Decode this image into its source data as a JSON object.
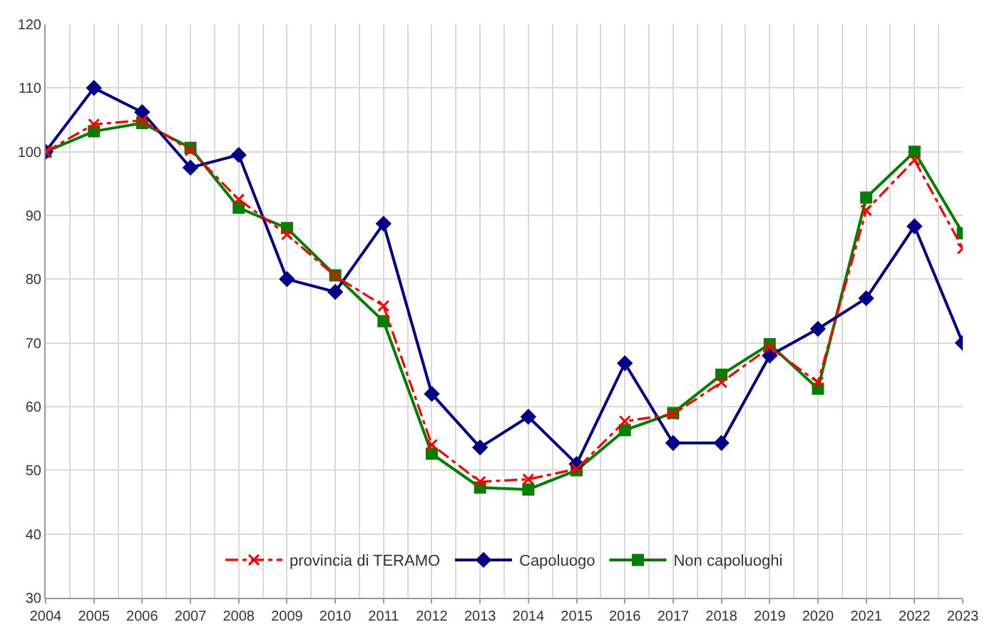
{
  "chart_data": {
    "type": "line",
    "x": [
      2004,
      2005,
      2006,
      2007,
      2008,
      2009,
      2010,
      2011,
      2012,
      2013,
      2014,
      2015,
      2016,
      2017,
      2018,
      2019,
      2020,
      2021,
      2022,
      2023
    ],
    "xlim": [
      2004,
      2023
    ],
    "xticks": [
      2004,
      2005,
      2006,
      2007,
      2008,
      2009,
      2010,
      2011,
      2012,
      2013,
      2014,
      2015,
      2016,
      2017,
      2018,
      2019,
      2020,
      2021,
      2022,
      2023
    ],
    "ylim": [
      30,
      120
    ],
    "yticks": [
      30,
      40,
      50,
      60,
      70,
      80,
      90,
      100,
      110,
      120
    ],
    "grid": true,
    "legend": "bottom",
    "series": [
      {
        "name": "provincia di TERAMO",
        "color": "#ff0000",
        "marker": "cross",
        "line_style": "dashdot",
        "values": [
          100,
          104.3,
          104.9,
          100.2,
          92.5,
          87,
          80.5,
          75.8,
          54,
          48.2,
          48.6,
          50.2,
          57.7,
          58.8,
          63.8,
          69.3,
          63.8,
          90.8,
          98.7,
          84.8
        ]
      },
      {
        "name": "Capoluogo",
        "color": "#00008b",
        "marker": "diamond",
        "line_style": "solid",
        "values": [
          100,
          110,
          106.2,
          97.5,
          99.5,
          80,
          78,
          88.7,
          62,
          53.6,
          58.4,
          51,
          66.8,
          54.3,
          54.3,
          68,
          72.2,
          77,
          88.3,
          70
        ]
      },
      {
        "name": "Non capoluoghi",
        "color": "#008000",
        "marker": "square",
        "line_style": "solid",
        "values": [
          100,
          103.2,
          104.5,
          100.6,
          91.2,
          88,
          80.6,
          73.4,
          52.6,
          47.3,
          47,
          50,
          56.3,
          59,
          65,
          69.8,
          62.8,
          92.8,
          100,
          87.2
        ]
      }
    ]
  }
}
